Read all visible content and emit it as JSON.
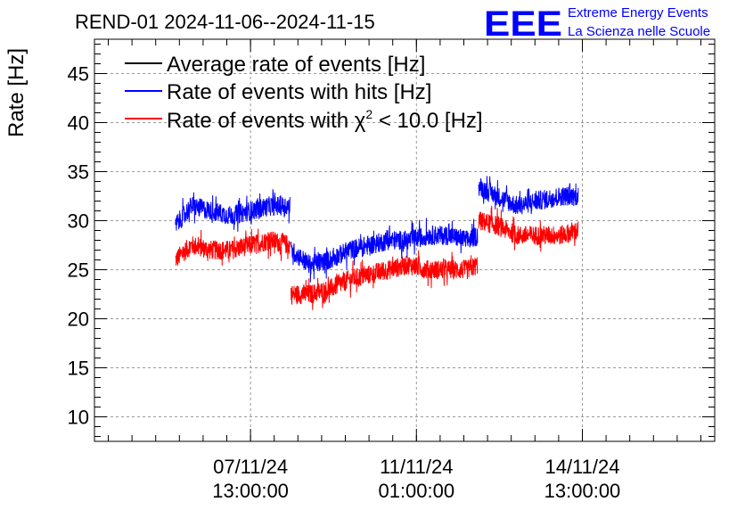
{
  "chart_data": {
    "type": "line",
    "title": "REND-01 2024-11-06--2024-11-15",
    "ylabel": "Rate [Hz]",
    "xlabel": "",
    "ylim": [
      7.5,
      48.5
    ],
    "y_ticks": [
      10,
      15,
      20,
      25,
      30,
      35,
      40,
      45
    ],
    "x_range_hours": [
      -79,
      235
    ],
    "x_ticks": [
      {
        "hours": 0,
        "date": "07/11/24",
        "time": "13:00:00"
      },
      {
        "hours": 84,
        "date": "11/11/24",
        "time": "01:00:00"
      },
      {
        "hours": 168,
        "date": "14/11/24",
        "time": "13:00:00"
      }
    ],
    "grid": true,
    "legend_position": "top-left",
    "series": [
      {
        "name": "Average rate of events [Hz]",
        "color": "#000000",
        "noise": 0,
        "segments": [],
        "note": "overdrawn by the blue series"
      },
      {
        "name": "Rate of events with hits [Hz]",
        "color": "#0000ff",
        "noise": 1.0,
        "segments": [
          {
            "x": [
              -38,
              -30,
              -20,
              -10,
              0,
              10,
              20
            ],
            "y": [
              29.5,
              31.5,
              31.0,
              30.5,
              31.0,
              31.5,
              31.5
            ]
          },
          {
            "x": [
              20.5,
              30,
              40,
              50,
              60,
              70,
              80,
              90,
              100,
              110,
              115
            ],
            "y": [
              27.0,
              25.5,
              26.0,
              27.0,
              27.5,
              28.0,
              28.0,
              28.5,
              28.5,
              28.0,
              28.5
            ]
          },
          {
            "x": [
              115.5,
              125,
              135,
              145,
              157,
              166
            ],
            "y": [
              33.5,
              32.5,
              31.5,
              32.0,
              32.5,
              32.5
            ]
          }
        ]
      },
      {
        "name": "Rate of events with χ² < 10.0 [Hz]",
        "name_base": "Rate of events with ",
        "name_chi": "χ",
        "name_sup": "2",
        "name_tail": " < 10.0 [Hz]",
        "color": "#ff0000",
        "noise": 1.0,
        "segments": [
          {
            "x": [
              -38,
              -30,
              -20,
              -10,
              0,
              10,
              20
            ],
            "y": [
              26.0,
              27.5,
              27.0,
              27.0,
              27.5,
              28.0,
              27.5
            ]
          },
          {
            "x": [
              20.5,
              30,
              40,
              50,
              60,
              70,
              80,
              90,
              100,
              110,
              115
            ],
            "y": [
              22.5,
              22.5,
              23.0,
              24.0,
              24.5,
              25.0,
              25.5,
              25.0,
              25.0,
              25.0,
              25.5
            ]
          },
          {
            "x": [
              115.5,
              125,
              135,
              145,
              157,
              166
            ],
            "y": [
              30.0,
              29.5,
              28.5,
              28.5,
              28.5,
              29.0
            ]
          }
        ]
      }
    ]
  },
  "logo": {
    "mark": "EEE",
    "line1": "Extreme Energy Events",
    "line2": "La Scienza nelle Scuole",
    "color": "#0000ff"
  }
}
